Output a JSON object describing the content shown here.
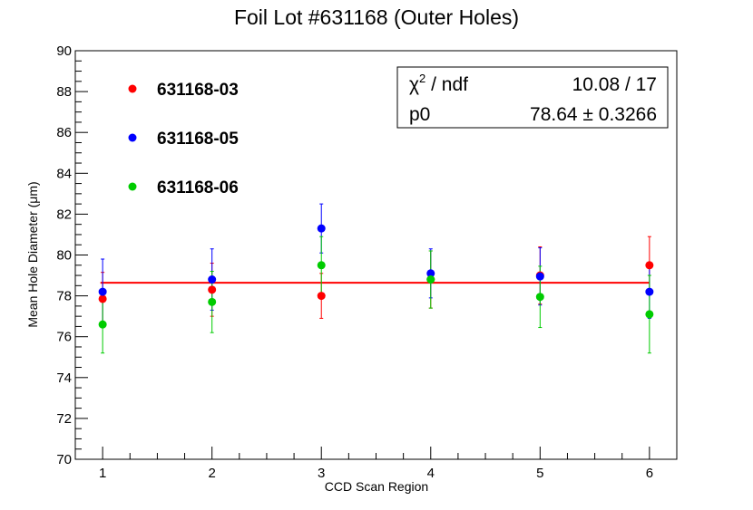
{
  "chart_data": {
    "type": "scatter",
    "title": "Foil Lot #631168 (Outer Holes)",
    "xlabel": "CCD Scan Region",
    "ylabel": "Mean Hole Diameter (μm)",
    "xlim": [
      0.75,
      6.25
    ],
    "ylim": [
      70,
      90
    ],
    "x_ticks": [
      "1",
      "2",
      "3",
      "4",
      "5",
      "6"
    ],
    "y_ticks": [
      "70",
      "72",
      "74",
      "76",
      "78",
      "80",
      "82",
      "84",
      "86",
      "88",
      "90"
    ],
    "series": [
      {
        "name": "631168-03",
        "color": "#ff0000",
        "x": [
          1,
          2,
          3,
          4,
          5,
          6
        ],
        "y": [
          77.85,
          78.3,
          78.0,
          78.8,
          79.0,
          79.5
        ],
        "err": [
          1.3,
          1.3,
          1.1,
          1.4,
          1.4,
          1.4
        ]
      },
      {
        "name": "631168-05",
        "color": "#0000ff",
        "x": [
          1,
          2,
          3,
          4,
          5,
          6
        ],
        "y": [
          78.2,
          78.8,
          81.3,
          79.1,
          78.95,
          78.2
        ],
        "err": [
          1.6,
          1.5,
          1.2,
          1.2,
          1.4,
          1.3
        ]
      },
      {
        "name": "631168-06",
        "color": "#00cc00",
        "x": [
          1,
          2,
          3,
          4,
          5,
          6
        ],
        "y": [
          76.6,
          77.7,
          79.5,
          78.8,
          77.95,
          77.1
        ],
        "err": [
          1.4,
          1.5,
          1.4,
          1.4,
          1.5,
          1.9
        ]
      }
    ],
    "fit": {
      "value": 78.64,
      "color": "#ff0000",
      "chi2_label": "χ",
      "chi2_sup": "2",
      "chi2_rest": " / ndf",
      "chi2_value": "10.08 / 17",
      "p0_label": "p0",
      "p0_value": "78.64 ± 0.3266"
    },
    "legend_position": "top-left"
  }
}
